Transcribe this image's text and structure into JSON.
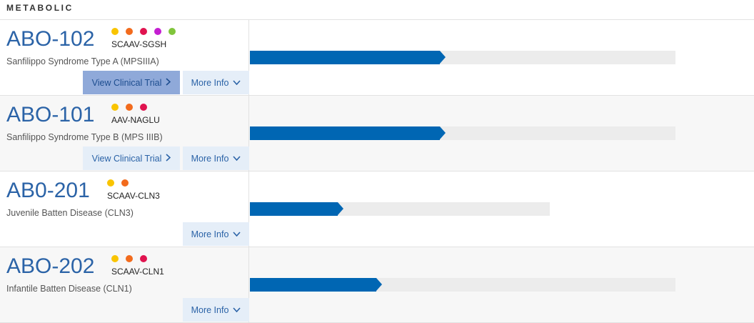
{
  "section": {
    "title": "METABOLIC"
  },
  "programs": [
    {
      "code": "ABO-102",
      "vector": "SCAAV-SGSH",
      "disease": "Sanfilippo Syndrome Type A (MPSIIIA)",
      "indicator_colors": [
        "#f9c400",
        "#f26b1d",
        "#e0134f",
        "#c41ed1",
        "#80c53b"
      ],
      "progress_fraction": 0.46,
      "track_fraction": 1.0,
      "buttons": {
        "trial": "View Clinical Trial",
        "info": "More Info"
      },
      "trial_active": true
    },
    {
      "code": "ABO-101",
      "vector": "AAV-NAGLU",
      "disease": "Sanfilippo Syndrome Type B (MPS IIIB)",
      "indicator_colors": [
        "#f9c400",
        "#f26b1d",
        "#e0134f"
      ],
      "progress_fraction": 0.46,
      "track_fraction": 1.0,
      "buttons": {
        "trial": "View Clinical Trial",
        "info": "More Info"
      },
      "trial_active": false
    },
    {
      "code": "AB0-201",
      "vector": "SCAAV-CLN3",
      "disease": "Juvenile Batten Disease (CLN3)",
      "indicator_colors": [
        "#f9c400",
        "#f26b1d"
      ],
      "progress_fraction": 0.22,
      "track_fraction": 0.705,
      "buttons": {
        "info": "More Info"
      },
      "trial_active": false
    },
    {
      "code": "ABO-202",
      "vector": "SCAAV-CLN1",
      "disease": "Infantile Batten Disease (CLN1)",
      "indicator_colors": [
        "#f9c400",
        "#f26b1d",
        "#e0134f"
      ],
      "progress_fraction": 0.31,
      "track_fraction": 1.0,
      "buttons": {
        "info": "More Info"
      },
      "trial_active": false
    }
  ]
}
